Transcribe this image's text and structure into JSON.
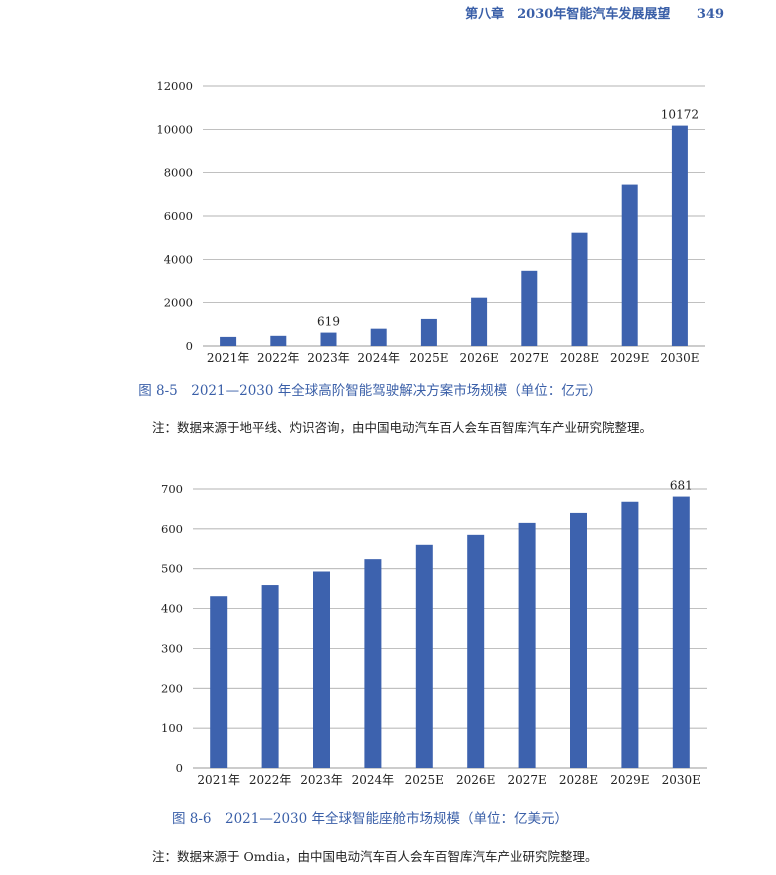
{
  "header": {
    "chapter": "第八章　2030年智能汽车发展展望",
    "page_number": "349"
  },
  "figure1": {
    "caption": "图 8-5　2021—2030 年全球高阶智能驾驶解决方案市场规模（单位：亿元）",
    "note": "注：数据来源于地平线、灼识咨询，由中国电动汽车百人会车百智库汽车产业研究院整理。"
  },
  "figure2": {
    "caption": "图 8-6　2021—2030 年全球智能座舱市场规模（单位：亿美元）",
    "note": "注：数据来源于 Omdia，由中国电动汽车百人会车百智库汽车产业研究院整理。"
  },
  "colors": {
    "bar": "#3d62ae",
    "grid": "#9a9a9a",
    "accent": "#3a5fa8"
  },
  "chart_data": [
    {
      "type": "bar",
      "title": "",
      "categories": [
        "2021年",
        "2022年",
        "2023年",
        "2024年",
        "2025E",
        "2026E",
        "2027E",
        "2028E",
        "2029E",
        "2030E"
      ],
      "values": [
        420,
        470,
        619,
        800,
        1250,
        2230,
        3470,
        5230,
        7450,
        10172
      ],
      "data_labels": [
        null,
        null,
        "619",
        null,
        null,
        null,
        null,
        null,
        null,
        "10172"
      ],
      "yticks": [
        "0",
        "2000",
        "4000",
        "6000",
        "8000",
        "10000",
        "12000"
      ],
      "ylim": [
        0,
        12000
      ],
      "grid": true,
      "legend": "none"
    },
    {
      "type": "bar",
      "title": "",
      "categories": [
        "2021年",
        "2022年",
        "2023年",
        "2024年",
        "2025E",
        "2026E",
        "2027E",
        "2028E",
        "2029E",
        "2030E"
      ],
      "values": [
        431,
        459,
        493,
        524,
        560,
        585,
        615,
        640,
        668,
        681
      ],
      "data_labels": [
        null,
        null,
        null,
        null,
        null,
        null,
        null,
        null,
        null,
        "681"
      ],
      "yticks": [
        "0",
        "100",
        "200",
        "300",
        "400",
        "500",
        "600",
        "700"
      ],
      "ylim": [
        0,
        700
      ],
      "grid": true,
      "legend": "none"
    }
  ]
}
